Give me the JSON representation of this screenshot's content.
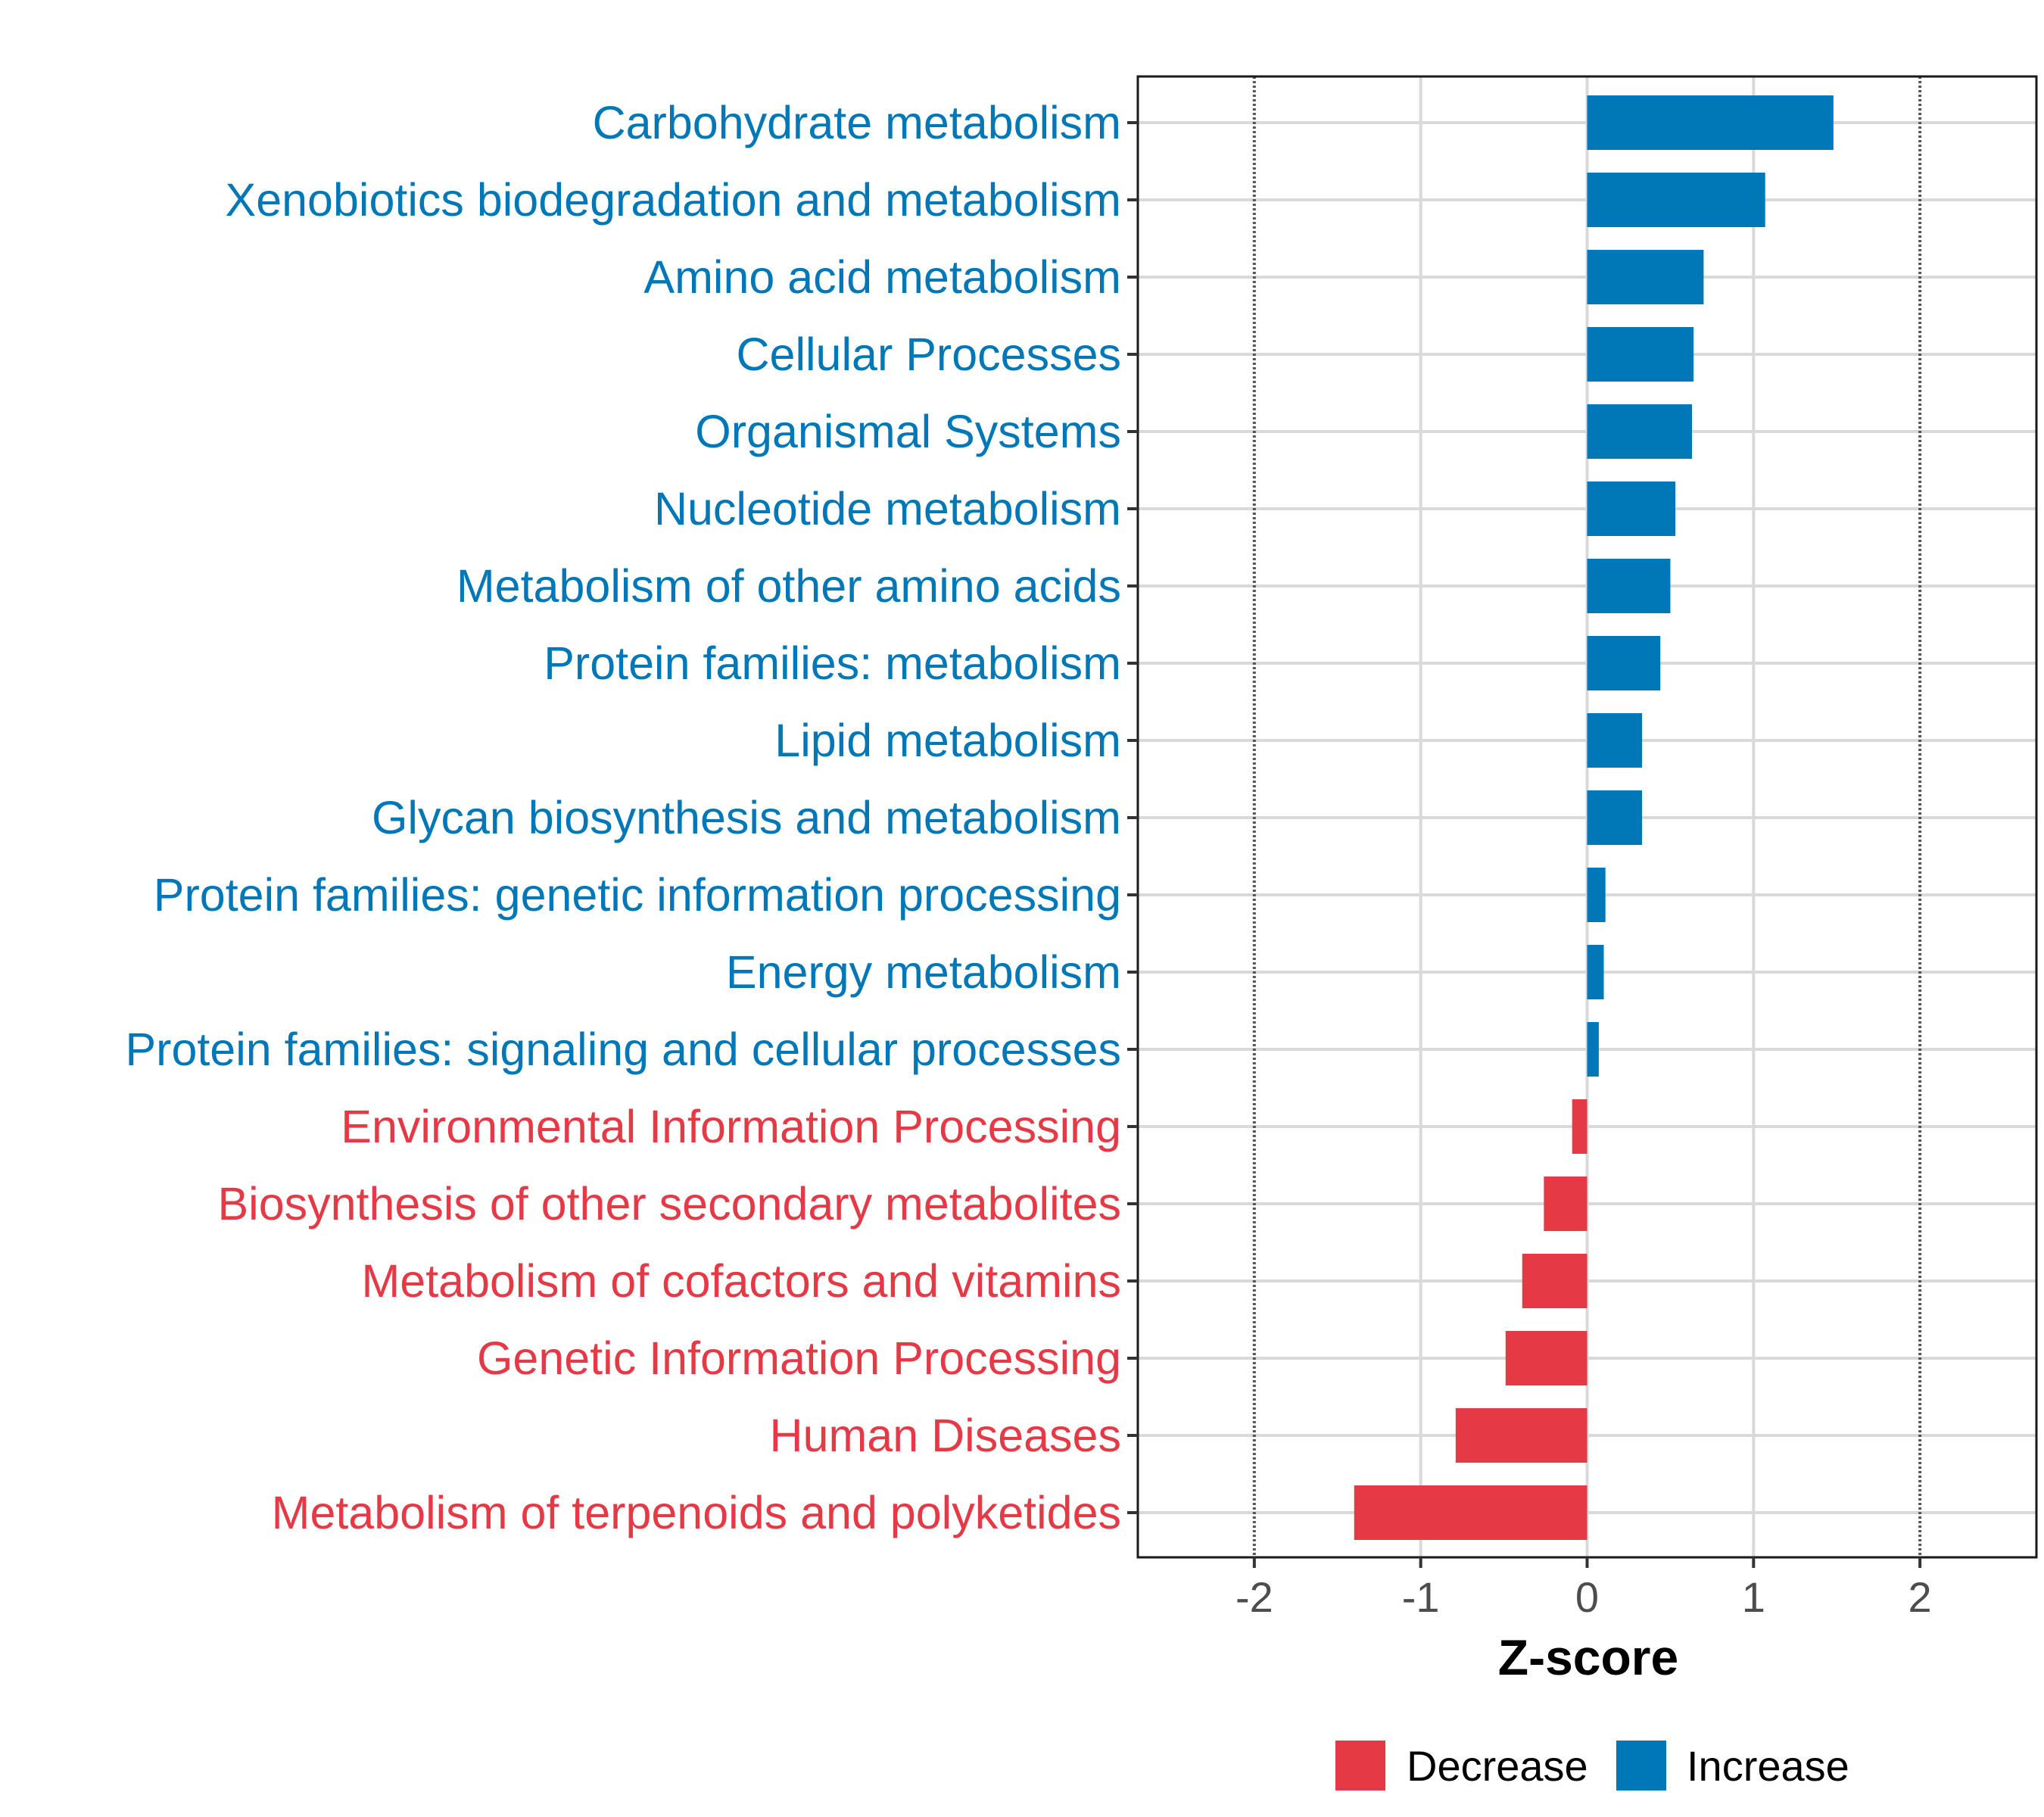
{
  "chart_data": {
    "type": "bar",
    "orientation": "horizontal",
    "xlabel": "Z-score",
    "xlim": [
      -2.7,
      2.7
    ],
    "xticks": [
      -2,
      -1,
      0,
      1,
      2
    ],
    "xtick_labels": [
      "-2",
      "-1",
      "0",
      "1",
      "2"
    ],
    "reference_lines": [
      -2,
      2
    ],
    "grid": true,
    "legend_position": "bottom",
    "legend": [
      {
        "name": "Decrease",
        "color": "#E63946"
      },
      {
        "name": "Increase",
        "color": "#0077B6"
      }
    ],
    "categories": [
      "Carbohydrate metabolism",
      "Xenobiotics biodegradation and metabolism",
      "Amino acid metabolism",
      "Cellular Processes",
      "Organismal Systems",
      "Nucleotide metabolism",
      "Metabolism of other amino acids",
      "Protein families: metabolism",
      "Lipid metabolism",
      "Glycan biosynthesis and metabolism",
      "Protein families: genetic information processing",
      "Energy metabolism",
      "Protein families: signaling and cellular processes",
      "Environmental Information Processing",
      "Biosynthesis of other secondary metabolites",
      "Metabolism of cofactors and vitamins",
      "Genetic Information Processing",
      "Human Diseases",
      "Metabolism of terpenoids and polyketides"
    ],
    "values": [
      1.48,
      1.07,
      0.7,
      0.64,
      0.63,
      0.53,
      0.5,
      0.44,
      0.33,
      0.33,
      0.11,
      0.1,
      0.07,
      -0.09,
      -0.26,
      -0.39,
      -0.49,
      -0.79,
      -1.4
    ],
    "groups": [
      "Increase",
      "Increase",
      "Increase",
      "Increase",
      "Increase",
      "Increase",
      "Increase",
      "Increase",
      "Increase",
      "Increase",
      "Increase",
      "Increase",
      "Increase",
      "Decrease",
      "Decrease",
      "Decrease",
      "Decrease",
      "Decrease",
      "Decrease"
    ]
  }
}
